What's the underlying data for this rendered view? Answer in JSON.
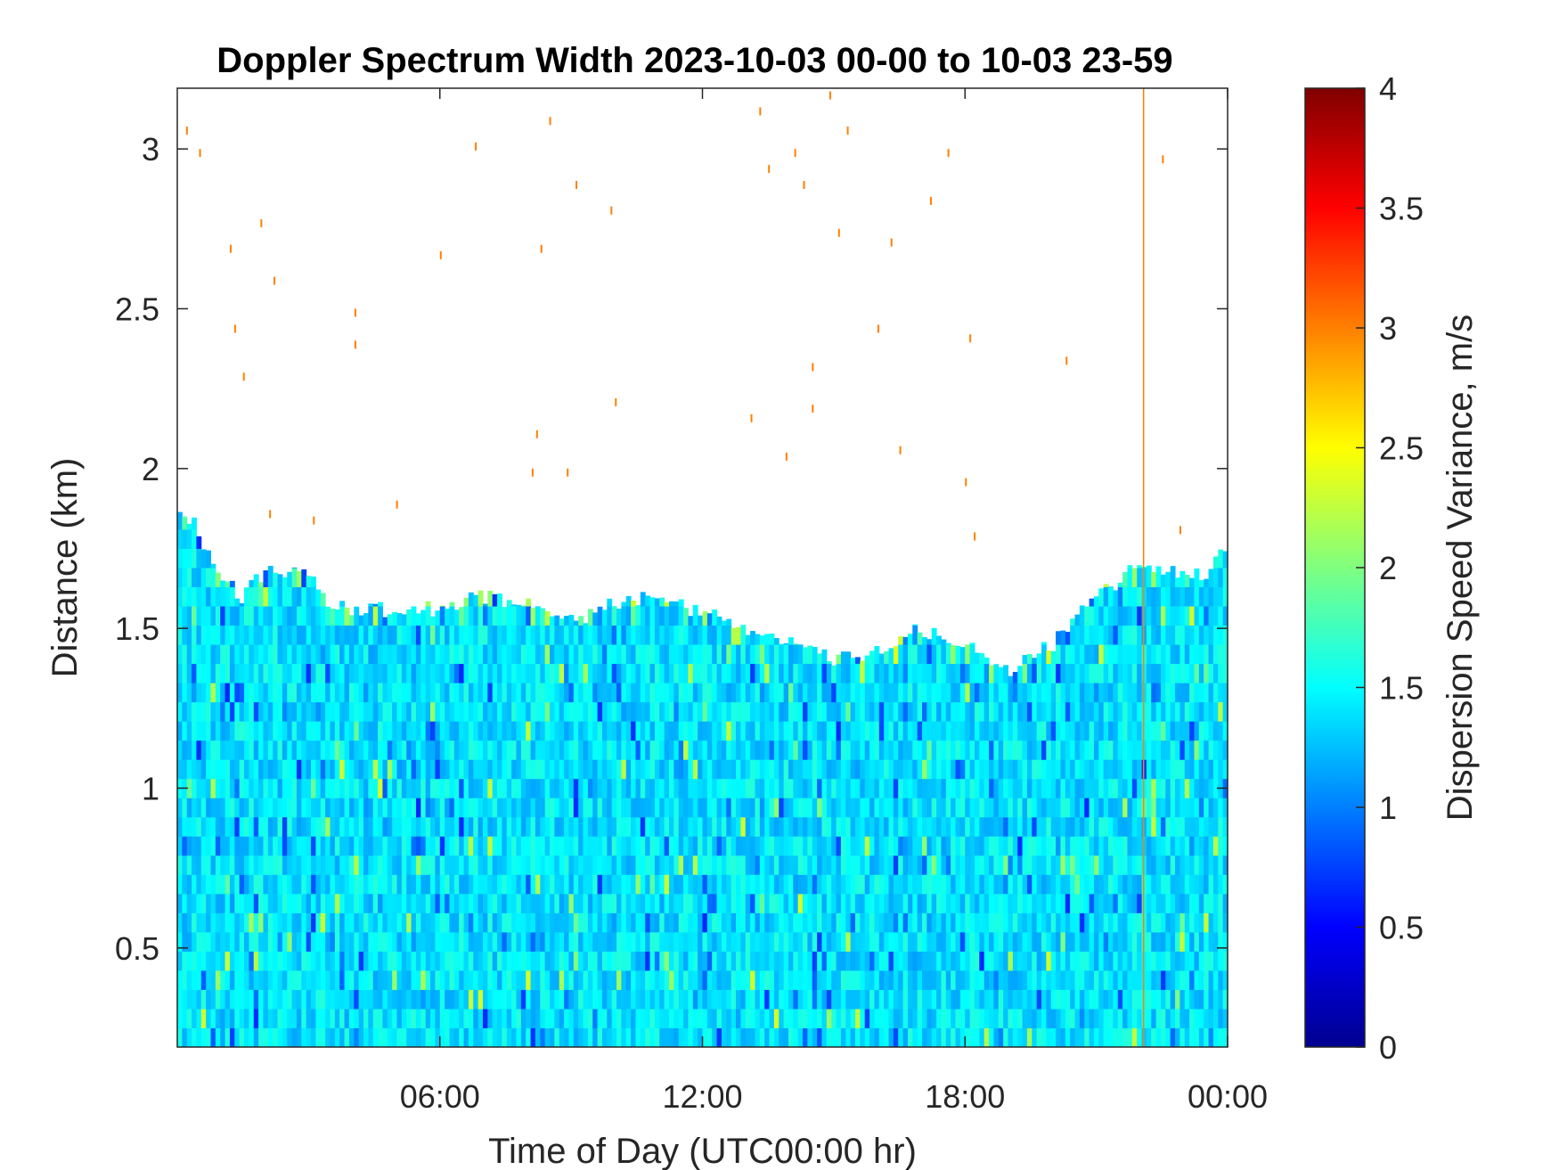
{
  "chart_data": {
    "type": "heatmap",
    "title": "Doppler Spectrum Width 2023-10-03 00-00 to 10-03 23-59",
    "xlabel": "Time of Day (UTC00:00 hr)",
    "ylabel": "Distance (km)",
    "xlim": [
      0,
      24
    ],
    "ylim": [
      0.19,
      3.19
    ],
    "xticks": [
      {
        "v": 6,
        "label": "06:00"
      },
      {
        "v": 12,
        "label": "12:00"
      },
      {
        "v": 18,
        "label": "18:00"
      },
      {
        "v": 24,
        "label": "00:00"
      }
    ],
    "yticks": [
      {
        "v": 0.5,
        "label": "0.5"
      },
      {
        "v": 1,
        "label": "1"
      },
      {
        "v": 1.5,
        "label": "1.5"
      },
      {
        "v": 2,
        "label": "2"
      },
      {
        "v": 2.5,
        "label": "2.5"
      },
      {
        "v": 3,
        "label": "3"
      }
    ],
    "colorbar": {
      "label": "Dispersion Speed Variance, m/s",
      "range": [
        0,
        4
      ],
      "colormap": "jet",
      "ticks": [
        "0",
        "0.5",
        "1",
        "1.5",
        "2",
        "2.5",
        "3",
        "3.5",
        "4"
      ]
    },
    "typical_value": 1.4,
    "echo_top_km": {
      "hours": [
        0,
        0.5,
        1,
        1.5,
        2,
        3,
        3.5,
        4,
        6,
        7,
        8,
        9,
        10,
        11,
        12,
        13,
        14,
        15,
        16,
        17,
        18,
        19,
        20,
        21,
        22,
        23,
        23.5,
        24
      ],
      "km": [
        1.9,
        1.8,
        1.65,
        1.6,
        1.68,
        1.68,
        1.58,
        1.56,
        1.56,
        1.6,
        1.57,
        1.52,
        1.58,
        1.6,
        1.55,
        1.5,
        1.45,
        1.4,
        1.42,
        1.5,
        1.45,
        1.37,
        1.45,
        1.6,
        1.7,
        1.68,
        1.65,
        1.78
      ]
    },
    "vertical_line": {
      "hour": 22.08,
      "value": 3.0
    },
    "sparse_points": [
      [
        0.2,
        3.07
      ],
      [
        0.5,
        3.0
      ],
      [
        1.2,
        2.7
      ],
      [
        1.9,
        2.78
      ],
      [
        2.2,
        2.6
      ],
      [
        1.3,
        2.45
      ],
      [
        1.5,
        2.3
      ],
      [
        4.05,
        2.5
      ],
      [
        4.05,
        2.4
      ],
      [
        6.8,
        3.02
      ],
      [
        6,
        2.68
      ],
      [
        9.1,
        2.9
      ],
      [
        9.9,
        2.82
      ],
      [
        8.3,
        2.7
      ],
      [
        8.5,
        3.1
      ],
      [
        13.3,
        3.13
      ],
      [
        13.5,
        2.95
      ],
      [
        14.1,
        3.0
      ],
      [
        14.3,
        2.9
      ],
      [
        15.3,
        3.07
      ],
      [
        15.1,
        2.75
      ],
      [
        16,
        2.45
      ],
      [
        16.3,
        2.72
      ],
      [
        17.2,
        2.85
      ],
      [
        18.1,
        2.42
      ],
      [
        16.5,
        2.07
      ],
      [
        14.5,
        2.33
      ],
      [
        14.5,
        2.2
      ],
      [
        13.1,
        2.17
      ],
      [
        13.9,
        2.05
      ],
      [
        10,
        2.22
      ],
      [
        8.2,
        2.12
      ],
      [
        8.1,
        2.0
      ],
      [
        8.9,
        2.0
      ],
      [
        5,
        1.9
      ],
      [
        2.1,
        1.87
      ],
      [
        3.1,
        1.85
      ],
      [
        18,
        1.97
      ],
      [
        20.3,
        2.35
      ],
      [
        22.5,
        2.98
      ],
      [
        22.9,
        1.82
      ],
      [
        18.2,
        1.8
      ],
      [
        14.9,
        3.18
      ],
      [
        17.6,
        3.0
      ]
    ]
  }
}
